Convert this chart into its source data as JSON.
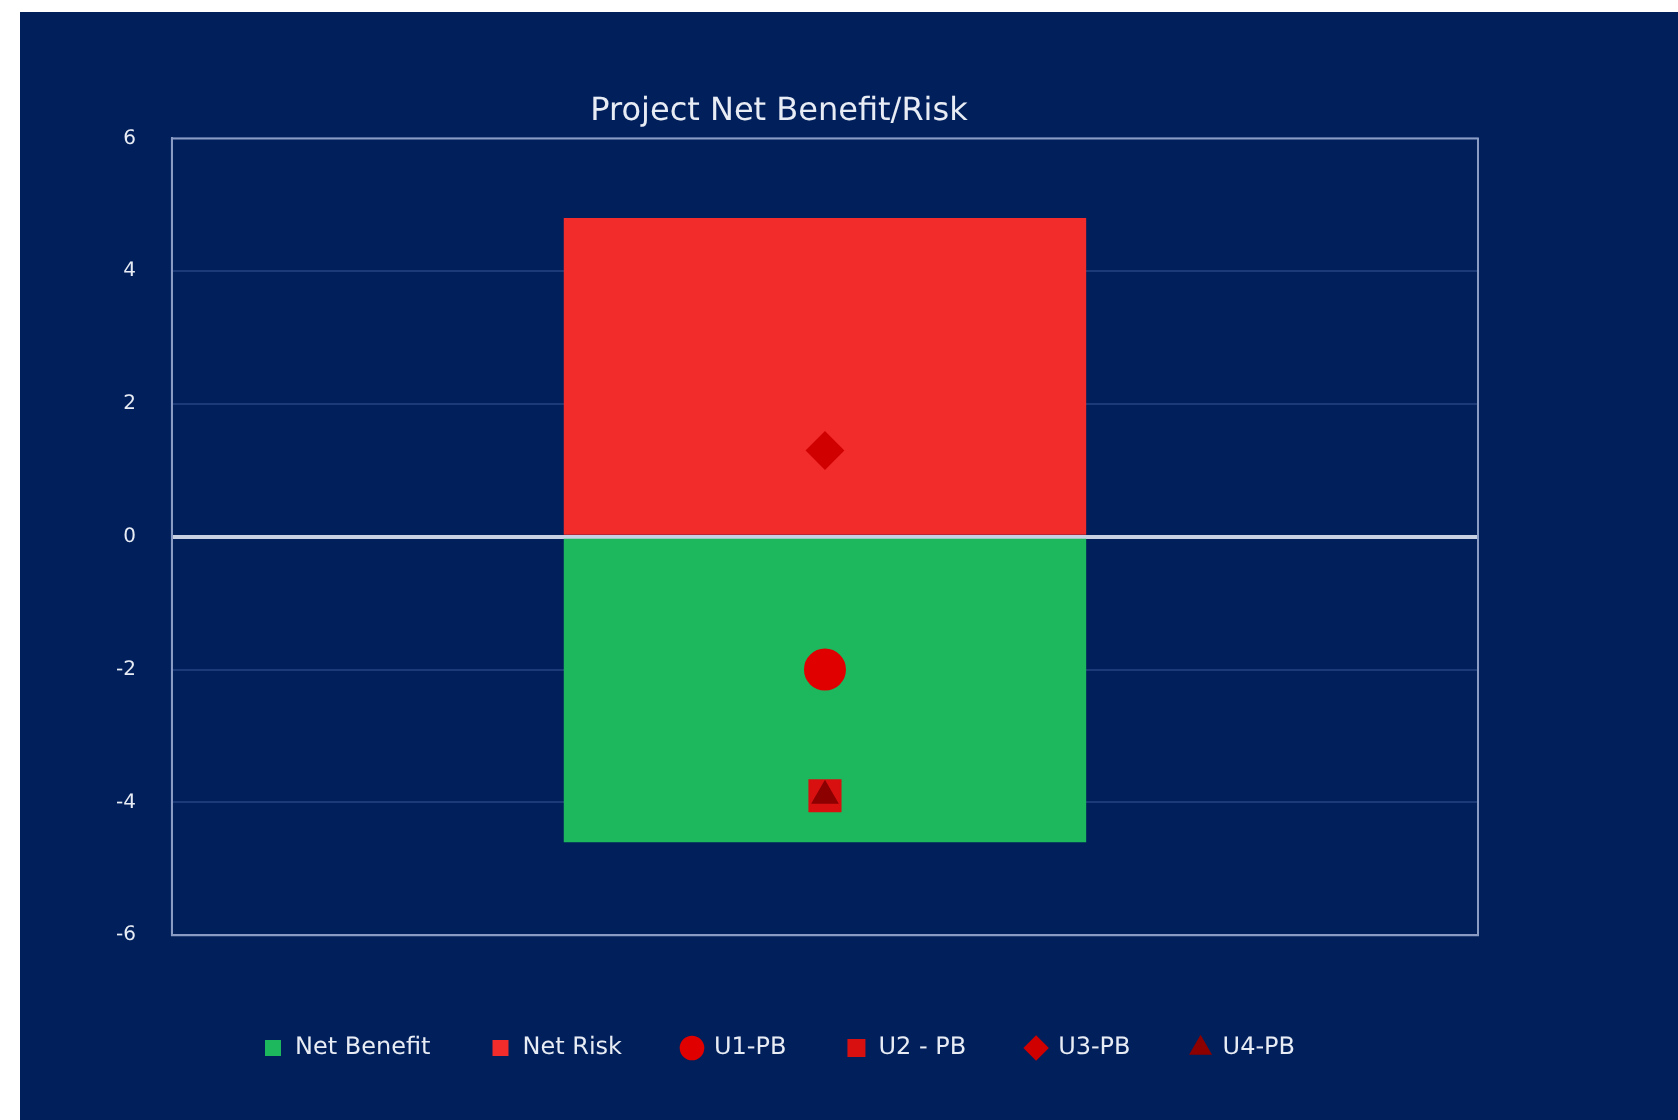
{
  "chart_data": {
    "type": "bar",
    "title": "Project Net Benefit/Risk",
    "categories": [
      null
    ],
    "stacked": true,
    "series": [
      {
        "name": "Net Benefit",
        "color": "#1db85e",
        "values": [
          -4.6
        ]
      },
      {
        "name": "Net Risk",
        "color": "#f22b2b",
        "values": [
          4.8
        ]
      },
      {
        "name": "U1-PB",
        "type": "scatter",
        "marker": "circle",
        "color": "#e00000",
        "values": [
          -2.0
        ]
      },
      {
        "name": "U2 - PB",
        "type": "scatter",
        "marker": "square",
        "color": "#d81010",
        "values": [
          -3.9
        ]
      },
      {
        "name": "U3-PB",
        "type": "scatter",
        "marker": "diamond",
        "color": "#d00000",
        "values": [
          1.3
        ]
      },
      {
        "name": "U4-PB",
        "type": "scatter",
        "marker": "triangle",
        "color": "#8c0000",
        "values": [
          -3.9
        ]
      }
    ],
    "ylim": [
      -6,
      6
    ],
    "yticks": [
      -6,
      -4,
      -2,
      0,
      2,
      4,
      6
    ],
    "grid": "y",
    "legend": "bottom"
  }
}
